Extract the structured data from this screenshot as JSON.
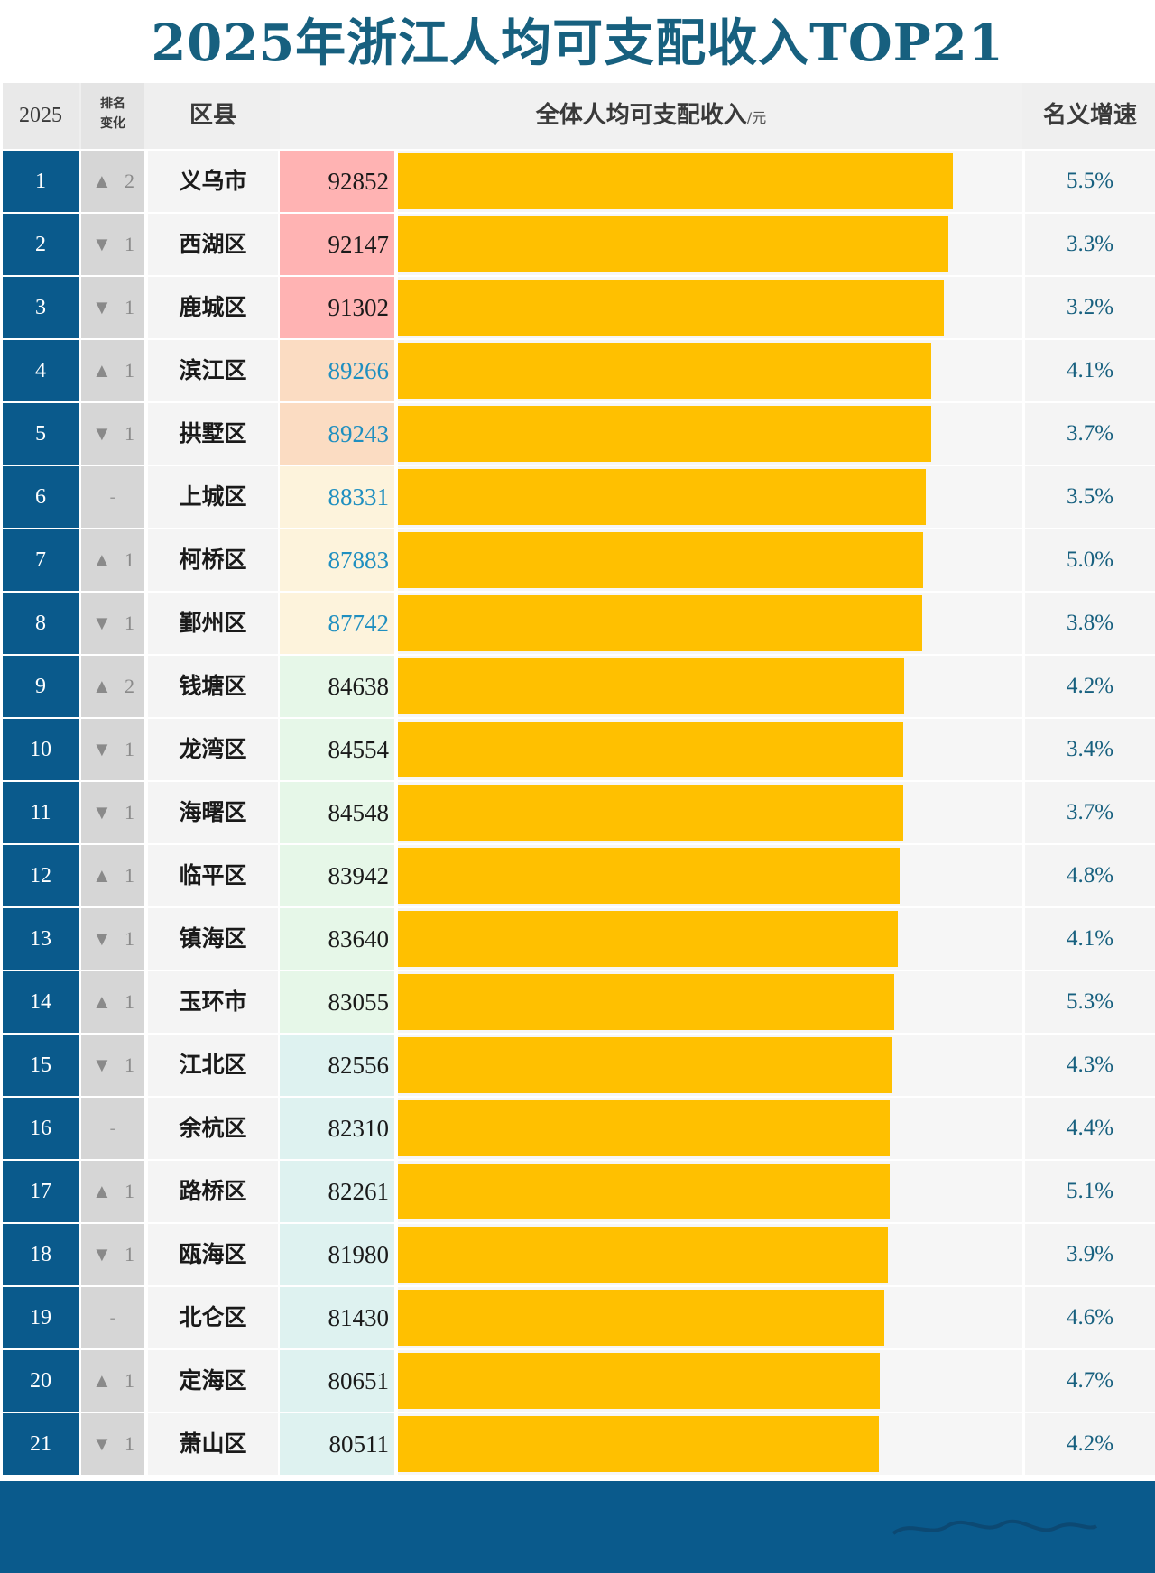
{
  "title": "2025年浙江人均可支配收入TOP21",
  "header": {
    "year": "2025",
    "change_line1": "排名",
    "change_line2": "变化",
    "district": "区县",
    "income": "全体人均可支配收入",
    "income_unit": "/元",
    "growth": "名义增速"
  },
  "colors": {
    "title": "#17607f",
    "rank_bg": "#0a5a8c",
    "bar": "#ffc000",
    "growth_text": "#17607f"
  },
  "chart_data": {
    "type": "bar",
    "orientation": "horizontal",
    "title": "2025年浙江人均可支配收入TOP21",
    "xlim": [
      0,
      92852
    ],
    "categories": [
      "义乌市",
      "西湖区",
      "鹿城区",
      "滨江区",
      "拱墅区",
      "上城区",
      "柯桥区",
      "鄞州区",
      "钱塘区",
      "龙湾区",
      "海曙区",
      "临平区",
      "镇海区",
      "玉环市",
      "江北区",
      "余杭区",
      "路桥区",
      "瓯海区",
      "北仑区",
      "定海区",
      "萧山区"
    ],
    "values": [
      92852,
      92147,
      91302,
      89266,
      89243,
      88331,
      87883,
      87742,
      84638,
      84554,
      84548,
      83942,
      83640,
      83055,
      82556,
      82310,
      82261,
      81980,
      81430,
      80651,
      80511
    ],
    "rows": [
      {
        "rank": "1",
        "dir": "up",
        "change": "2",
        "district": "义乌市",
        "value": "92852",
        "growth": "5.5%",
        "cell_bg": "#ffb3b3",
        "value_color": "#1a1a1a"
      },
      {
        "rank": "2",
        "dir": "down",
        "change": "1",
        "district": "西湖区",
        "value": "92147",
        "growth": "3.3%",
        "cell_bg": "#ffb3b3",
        "value_color": "#1a1a1a"
      },
      {
        "rank": "3",
        "dir": "down",
        "change": "1",
        "district": "鹿城区",
        "value": "91302",
        "growth": "3.2%",
        "cell_bg": "#ffb3b3",
        "value_color": "#1a1a1a"
      },
      {
        "rank": "4",
        "dir": "up",
        "change": "1",
        "district": "滨江区",
        "value": "89266",
        "growth": "4.1%",
        "cell_bg": "#fbdcc2",
        "value_color": "#1f8fc0"
      },
      {
        "rank": "5",
        "dir": "down",
        "change": "1",
        "district": "拱墅区",
        "value": "89243",
        "growth": "3.7%",
        "cell_bg": "#fbdcc2",
        "value_color": "#1f8fc0"
      },
      {
        "rank": "6",
        "dir": "none",
        "change": "-",
        "district": "上城区",
        "value": "88331",
        "growth": "3.5%",
        "cell_bg": "#fdf3dc",
        "value_color": "#1f8fc0"
      },
      {
        "rank": "7",
        "dir": "up",
        "change": "1",
        "district": "柯桥区",
        "value": "87883",
        "growth": "5.0%",
        "cell_bg": "#fdf3dc",
        "value_color": "#1f8fc0"
      },
      {
        "rank": "8",
        "dir": "down",
        "change": "1",
        "district": "鄞州区",
        "value": "87742",
        "growth": "3.8%",
        "cell_bg": "#fdf3dc",
        "value_color": "#1f8fc0"
      },
      {
        "rank": "9",
        "dir": "up",
        "change": "2",
        "district": "钱塘区",
        "value": "84638",
        "growth": "4.2%",
        "cell_bg": "#e6f7e8",
        "value_color": "#1a1a1a"
      },
      {
        "rank": "10",
        "dir": "down",
        "change": "1",
        "district": "龙湾区",
        "value": "84554",
        "growth": "3.4%",
        "cell_bg": "#e6f7e8",
        "value_color": "#1a1a1a"
      },
      {
        "rank": "11",
        "dir": "down",
        "change": "1",
        "district": "海曙区",
        "value": "84548",
        "growth": "3.7%",
        "cell_bg": "#e6f7e8",
        "value_color": "#1a1a1a"
      },
      {
        "rank": "12",
        "dir": "up",
        "change": "1",
        "district": "临平区",
        "value": "83942",
        "growth": "4.8%",
        "cell_bg": "#e6f7e8",
        "value_color": "#1a1a1a"
      },
      {
        "rank": "13",
        "dir": "down",
        "change": "1",
        "district": "镇海区",
        "value": "83640",
        "growth": "4.1%",
        "cell_bg": "#e6f7e8",
        "value_color": "#1a1a1a"
      },
      {
        "rank": "14",
        "dir": "up",
        "change": "1",
        "district": "玉环市",
        "value": "83055",
        "growth": "5.3%",
        "cell_bg": "#e6f7e8",
        "value_color": "#1a1a1a"
      },
      {
        "rank": "15",
        "dir": "down",
        "change": "1",
        "district": "江北区",
        "value": "82556",
        "growth": "4.3%",
        "cell_bg": "#def2f0",
        "value_color": "#1a1a1a"
      },
      {
        "rank": "16",
        "dir": "none",
        "change": "-",
        "district": "余杭区",
        "value": "82310",
        "growth": "4.4%",
        "cell_bg": "#def2f0",
        "value_color": "#1a1a1a"
      },
      {
        "rank": "17",
        "dir": "up",
        "change": "1",
        "district": "路桥区",
        "value": "82261",
        "growth": "5.1%",
        "cell_bg": "#def2f0",
        "value_color": "#1a1a1a"
      },
      {
        "rank": "18",
        "dir": "down",
        "change": "1",
        "district": "瓯海区",
        "value": "81980",
        "growth": "3.9%",
        "cell_bg": "#def2f0",
        "value_color": "#1a1a1a"
      },
      {
        "rank": "19",
        "dir": "none",
        "change": "-",
        "district": "北仑区",
        "value": "81430",
        "growth": "4.6%",
        "cell_bg": "#def2f0",
        "value_color": "#1a1a1a"
      },
      {
        "rank": "20",
        "dir": "up",
        "change": "1",
        "district": "定海区",
        "value": "80651",
        "growth": "4.7%",
        "cell_bg": "#def2f0",
        "value_color": "#1a1a1a"
      },
      {
        "rank": "21",
        "dir": "down",
        "change": "1",
        "district": "萧山区",
        "value": "80511",
        "growth": "4.2%",
        "cell_bg": "#def2f0",
        "value_color": "#1a1a1a"
      }
    ]
  }
}
